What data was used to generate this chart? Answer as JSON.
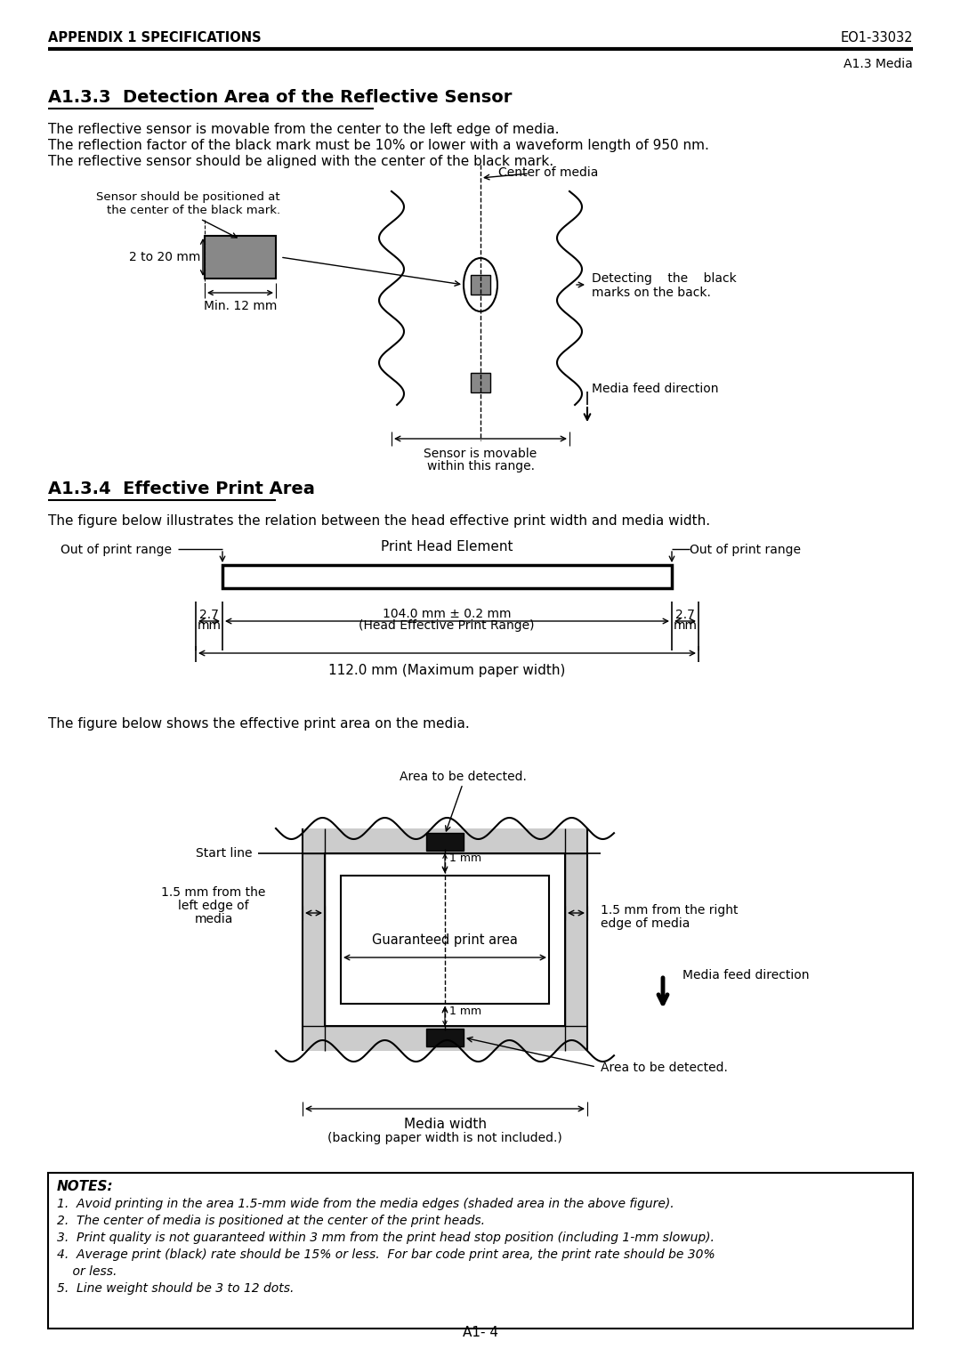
{
  "page_title_left": "APPENDIX 1 SPECIFICATIONS",
  "page_title_right": "EO1-33032",
  "page_subtitle_right": "A1.3 Media",
  "section1_title": "A1.3.3  Detection Area of the Reflective Sensor",
  "section1_text1": "The reflective sensor is movable from the center to the left edge of media.",
  "section1_text2": "The reflection factor of the black mark must be 10% or lower with a waveform length of 950 nm.",
  "section1_text3": "The reflective sensor should be aligned with the center of the black mark.",
  "section2_title": "A1.3.4  Effective Print Area",
  "section2_text1": "The figure below illustrates the relation between the head effective print width and media width.",
  "section2_text2": "The figure below shows the effective print area on the media.",
  "notes_title": "NOTES:",
  "notes": [
    "Avoid printing in the area 1.5-mm wide from the media edges (shaded area in the above figure).",
    "The center of media is positioned at the center of the print heads.",
    "Print quality is not guaranteed within 3 mm from the print head stop position (including 1-mm slowup).",
    "Average print (black) rate should be 15% or less.  For bar code print area, the print rate should be 30%",
    "or less.",
    "Line weight should be 3 to 12 dots."
  ],
  "page_number": "A1- 4",
  "bg_color": "#ffffff"
}
